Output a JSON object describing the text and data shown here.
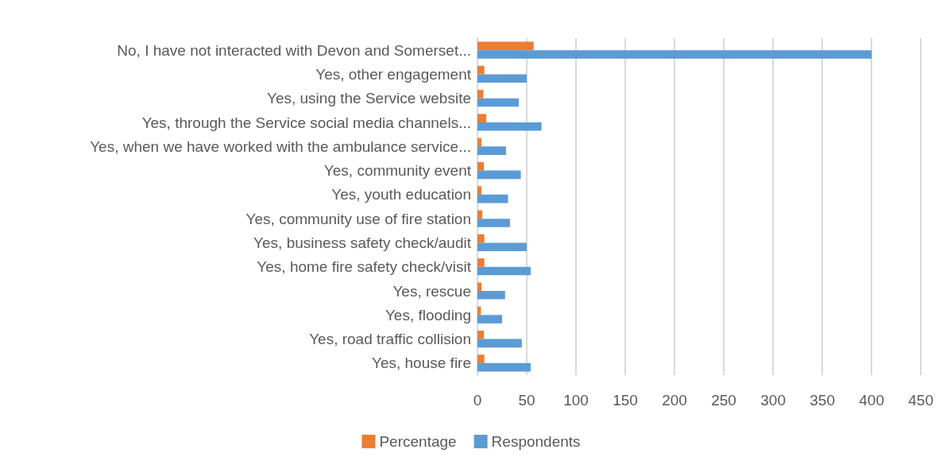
{
  "chart_data": {
    "type": "bar",
    "orientation": "horizontal",
    "categories": [
      "No, I have not interacted with Devon and Somerset...",
      "Yes, other engagement",
      "Yes, using the Service website",
      "Yes, through the Service social media channels...",
      "Yes, when we have worked with the ambulance service...",
      "Yes, community event",
      "Yes, youth education",
      "Yes, community use of fire station",
      "Yes, business safety check/audit",
      "Yes, home fire safety check/visit",
      "Yes, rescue",
      "Yes, flooding",
      "Yes, road traffic collision",
      "Yes, house fire"
    ],
    "series": [
      {
        "name": "Percentage",
        "color": "#ed7d31",
        "values": [
          57,
          7,
          6,
          9,
          4,
          6.5,
          4,
          5,
          7,
          7,
          4,
          3.5,
          6.5,
          7
        ]
      },
      {
        "name": "Respondents",
        "color": "#5b9bd5",
        "values": [
          400,
          50,
          42,
          65,
          29,
          44,
          31,
          33,
          50,
          54,
          28,
          25,
          45,
          54
        ]
      }
    ],
    "xlim": [
      0,
      450
    ],
    "xticks": [
      0,
      50,
      100,
      150,
      200,
      250,
      300,
      350,
      400,
      450
    ],
    "grid": "x",
    "legend": "bottom"
  }
}
